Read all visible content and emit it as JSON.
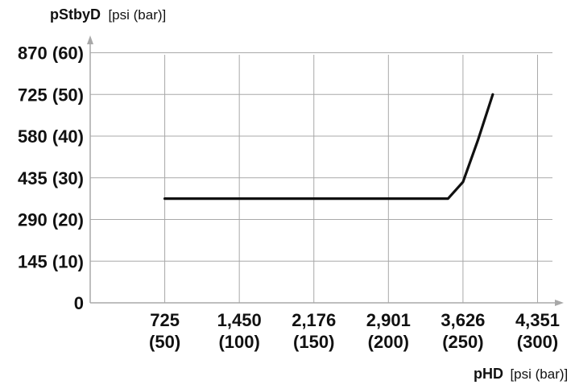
{
  "chart_data": {
    "type": "line",
    "title": "",
    "xlabel": {
      "symbol": "pHD",
      "unit": "[psi (bar)]"
    },
    "ylabel": {
      "symbol": "pStbyD",
      "unit": "[psi (bar)]"
    },
    "x_tick_values": [
      50,
      100,
      150,
      200,
      250,
      300
    ],
    "x_tick_labels": [
      {
        "psi": "725",
        "bar": "(50)"
      },
      {
        "psi": "1,450",
        "bar": "(100)"
      },
      {
        "psi": "2,176",
        "bar": "(150)"
      },
      {
        "psi": "2,901",
        "bar": "(200)"
      },
      {
        "psi": "3,626",
        "bar": "(250)"
      },
      {
        "psi": "4,351",
        "bar": "(300)"
      }
    ],
    "y_tick_values": [
      0,
      10,
      20,
      30,
      40,
      50,
      60
    ],
    "y_tick_labels": [
      "0",
      "145 (10)",
      "290 (20)",
      "435 (30)",
      "580 (40)",
      "725 (50)",
      "870 (60)"
    ],
    "xlim": [
      0,
      310
    ],
    "ylim": [
      0,
      63
    ],
    "grid": true,
    "series": [
      {
        "x": [
          50,
          100,
          150,
          200,
          240,
          250,
          260,
          270
        ],
        "y": [
          25,
          25,
          25,
          25,
          25,
          29,
          39,
          50
        ]
      }
    ]
  }
}
